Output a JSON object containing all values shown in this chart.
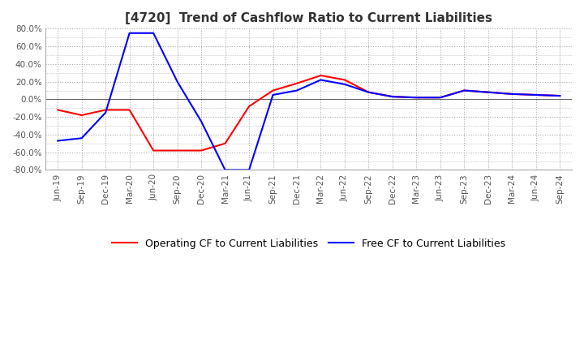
{
  "title": "[4720]  Trend of Cashflow Ratio to Current Liabilities",
  "x_labels": [
    "Jun-19",
    "Sep-19",
    "Dec-19",
    "Mar-20",
    "Jun-20",
    "Sep-20",
    "Dec-20",
    "Mar-21",
    "Jun-21",
    "Sep-21",
    "Dec-21",
    "Mar-22",
    "Jun-22",
    "Sep-22",
    "Dec-22",
    "Mar-23",
    "Jun-23",
    "Sep-23",
    "Dec-23",
    "Mar-24",
    "Jun-24",
    "Sep-24"
  ],
  "operating_cf": [
    -12,
    -18,
    -12,
    -12,
    -58,
    -58,
    -58,
    -50,
    -8,
    10,
    18,
    27,
    22,
    8,
    3,
    2,
    2,
    10,
    8,
    6,
    5,
    4
  ],
  "free_cf": [
    -47,
    -44,
    -15,
    75,
    75,
    20,
    -25,
    -80,
    -80,
    5,
    10,
    22,
    17,
    8,
    3,
    2,
    2,
    10,
    8,
    6,
    5,
    4
  ],
  "ylim": [
    -80,
    80
  ],
  "yticks": [
    -80,
    -60,
    -40,
    -20,
    0,
    20,
    40,
    60,
    80
  ],
  "operating_color": "#ff0000",
  "free_color": "#0000ff",
  "grid_color": "#aaaaaa",
  "background_color": "#ffffff",
  "legend_operating": "Operating CF to Current Liabilities",
  "legend_free": "Free CF to Current Liabilities",
  "title_color": "#333333",
  "tick_color": "#555555"
}
